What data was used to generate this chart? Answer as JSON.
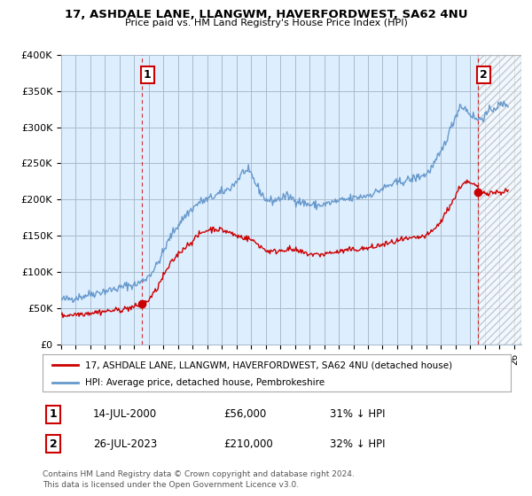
{
  "title1": "17, ASHDALE LANE, LLANGWM, HAVERFORDWEST, SA62 4NU",
  "title2": "Price paid vs. HM Land Registry's House Price Index (HPI)",
  "red_label": "17, ASHDALE LANE, LLANGWM, HAVERFORDWEST, SA62 4NU (detached house)",
  "blue_label": "HPI: Average price, detached house, Pembrokeshire",
  "sale1_date": "14-JUL-2000",
  "sale1_price": 56000,
  "sale1_pct": "31% ↓ HPI",
  "sale2_date": "26-JUL-2023",
  "sale2_price": 210000,
  "sale2_pct": "32% ↓ HPI",
  "footnote1": "Contains HM Land Registry data © Crown copyright and database right 2024.",
  "footnote2": "This data is licensed under the Open Government Licence v3.0.",
  "ylim": [
    0,
    400000
  ],
  "xlim_start": 1995.0,
  "xlim_end": 2026.5,
  "red_color": "#cc0000",
  "blue_color": "#6699cc",
  "dashed_color": "#cc0000",
  "bg_chart": "#ddeeff",
  "background_color": "#ffffff",
  "grid_color": "#aabbcc"
}
